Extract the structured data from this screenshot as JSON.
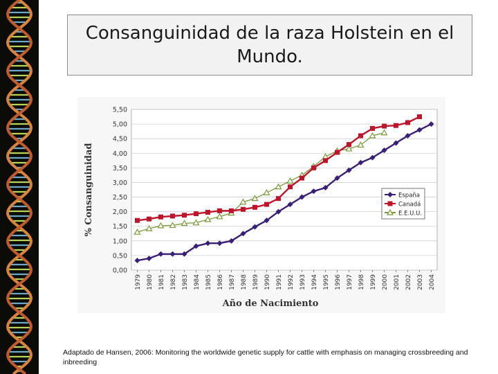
{
  "title": "Consanguinidad de la raza Holstein en el Mundo.",
  "caption": "Adaptado de Hansen, 2006: Monitoring the worldwide genetic supply for cattle with emphasis on managing crossbreeding and inbreeding",
  "colors": {
    "espana": "#3a1f7a",
    "canada": "#c0142a",
    "eeuu": "#7a9a3a",
    "dna_background": "#0b0b08"
  },
  "chart_data": {
    "type": "line",
    "title": "",
    "xlabel": "Año de Nacimiento",
    "ylabel": "% Consanguinidad",
    "ylim": [
      0,
      5.5
    ],
    "yticks": [
      "0,00",
      "0,50",
      "1,00",
      "1,50",
      "2,00",
      "2,50",
      "3,00",
      "3,50",
      "4,00",
      "4,50",
      "5,00",
      "5,50"
    ],
    "categories": [
      "1979",
      "1980",
      "1981",
      "1982",
      "1983",
      "1984",
      "1985",
      "1986",
      "1987",
      "1988",
      "1989",
      "1990",
      "1991",
      "1992",
      "1993",
      "1994",
      "1995",
      "1996",
      "1997",
      "1998",
      "1999",
      "2000",
      "2001",
      "2002",
      "2003",
      "2004"
    ],
    "legend_position": "right",
    "grid": true,
    "series": [
      {
        "name": "España",
        "marker": "diamond",
        "values": [
          0.33,
          0.4,
          0.55,
          0.55,
          0.55,
          0.82,
          0.92,
          0.92,
          1.0,
          1.25,
          1.48,
          1.7,
          2.0,
          2.25,
          2.5,
          2.7,
          2.82,
          3.15,
          3.42,
          3.68,
          3.85,
          4.1,
          4.35,
          4.6,
          4.8,
          5.0
        ]
      },
      {
        "name": "Canadá",
        "marker": "square",
        "values": [
          1.7,
          1.75,
          1.82,
          1.85,
          1.88,
          1.93,
          1.98,
          2.03,
          2.03,
          2.08,
          2.15,
          2.25,
          2.45,
          2.85,
          3.15,
          3.5,
          3.75,
          4.03,
          4.3,
          4.6,
          4.85,
          4.93,
          4.95,
          5.05,
          5.25,
          null
        ]
      },
      {
        "name": "E.E.U.U.",
        "marker": "triangle",
        "values": [
          1.3,
          1.42,
          1.52,
          1.53,
          1.6,
          1.62,
          1.73,
          1.83,
          1.95,
          2.33,
          2.45,
          2.65,
          2.85,
          3.05,
          3.25,
          3.55,
          3.88,
          4.08,
          4.15,
          4.28,
          4.6,
          4.7,
          null,
          null,
          null,
          null
        ]
      }
    ]
  }
}
